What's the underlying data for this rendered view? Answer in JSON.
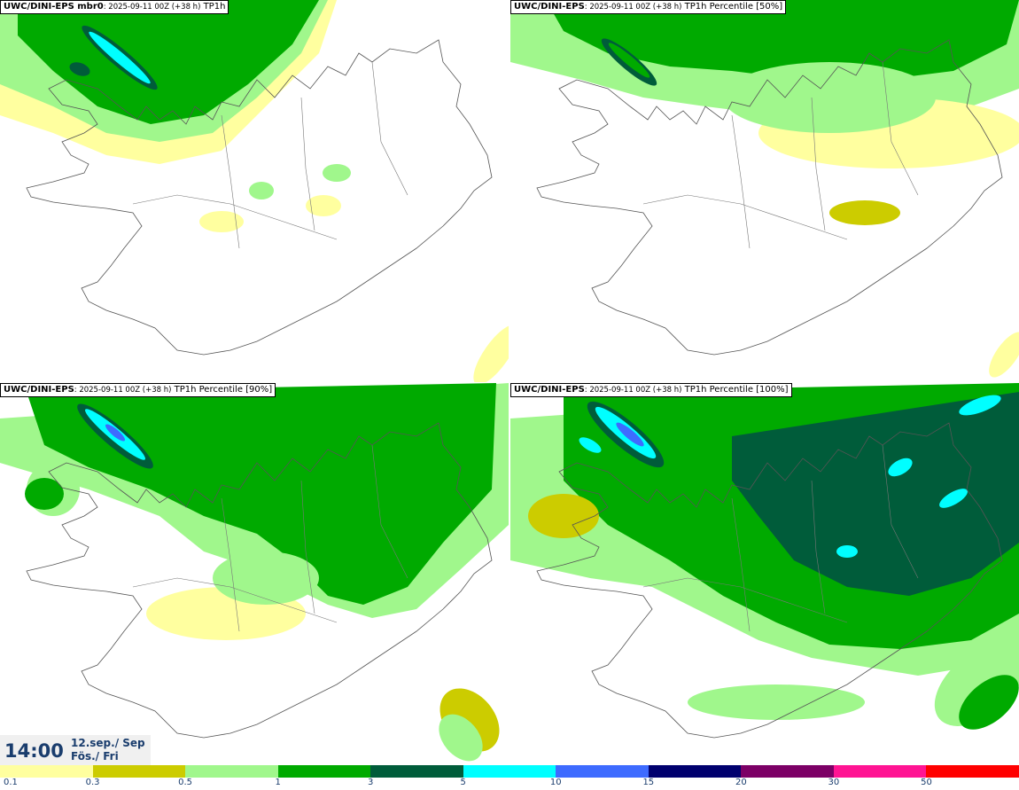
{
  "panels": [
    {
      "model": "UWC/DINI-EPS mbr0",
      "run": ": 2025-09-11 00Z (+38 h)",
      "product": " TP1h",
      "level": 1
    },
    {
      "model": "UWC/DINI-EPS",
      "run": ": 2025-09-11 00Z (+38 h)",
      "product": " TP1h Percentile [50%]",
      "level": 2
    },
    {
      "model": "UWC/DINI-EPS",
      "run": ": 2025-09-11 00Z (+38 h)",
      "product": " TP1h Percentile [90%]",
      "level": 3
    },
    {
      "model": "UWC/DINI-EPS",
      "run": ": 2025-09-11 00Z (+38 h)",
      "product": " TP1h Percentile [100%]",
      "level": 4
    }
  ],
  "valid_time": {
    "time": "14:00",
    "date_line1": "12.sep./ Sep",
    "date_line2": "Fös./ Fri"
  },
  "legend": {
    "colors": [
      "#ffff9f",
      "#cccc00",
      "#a0f78c",
      "#00aa00",
      "#005c3a",
      "#00ffff",
      "#3e6bff",
      "#00006e",
      "#7c0066",
      "#ff1493",
      "#ff0000"
    ],
    "labels": [
      "0.1",
      "0.3",
      "0.5",
      "1",
      "3",
      "5",
      "10",
      "15",
      "20",
      "30",
      "50"
    ]
  }
}
